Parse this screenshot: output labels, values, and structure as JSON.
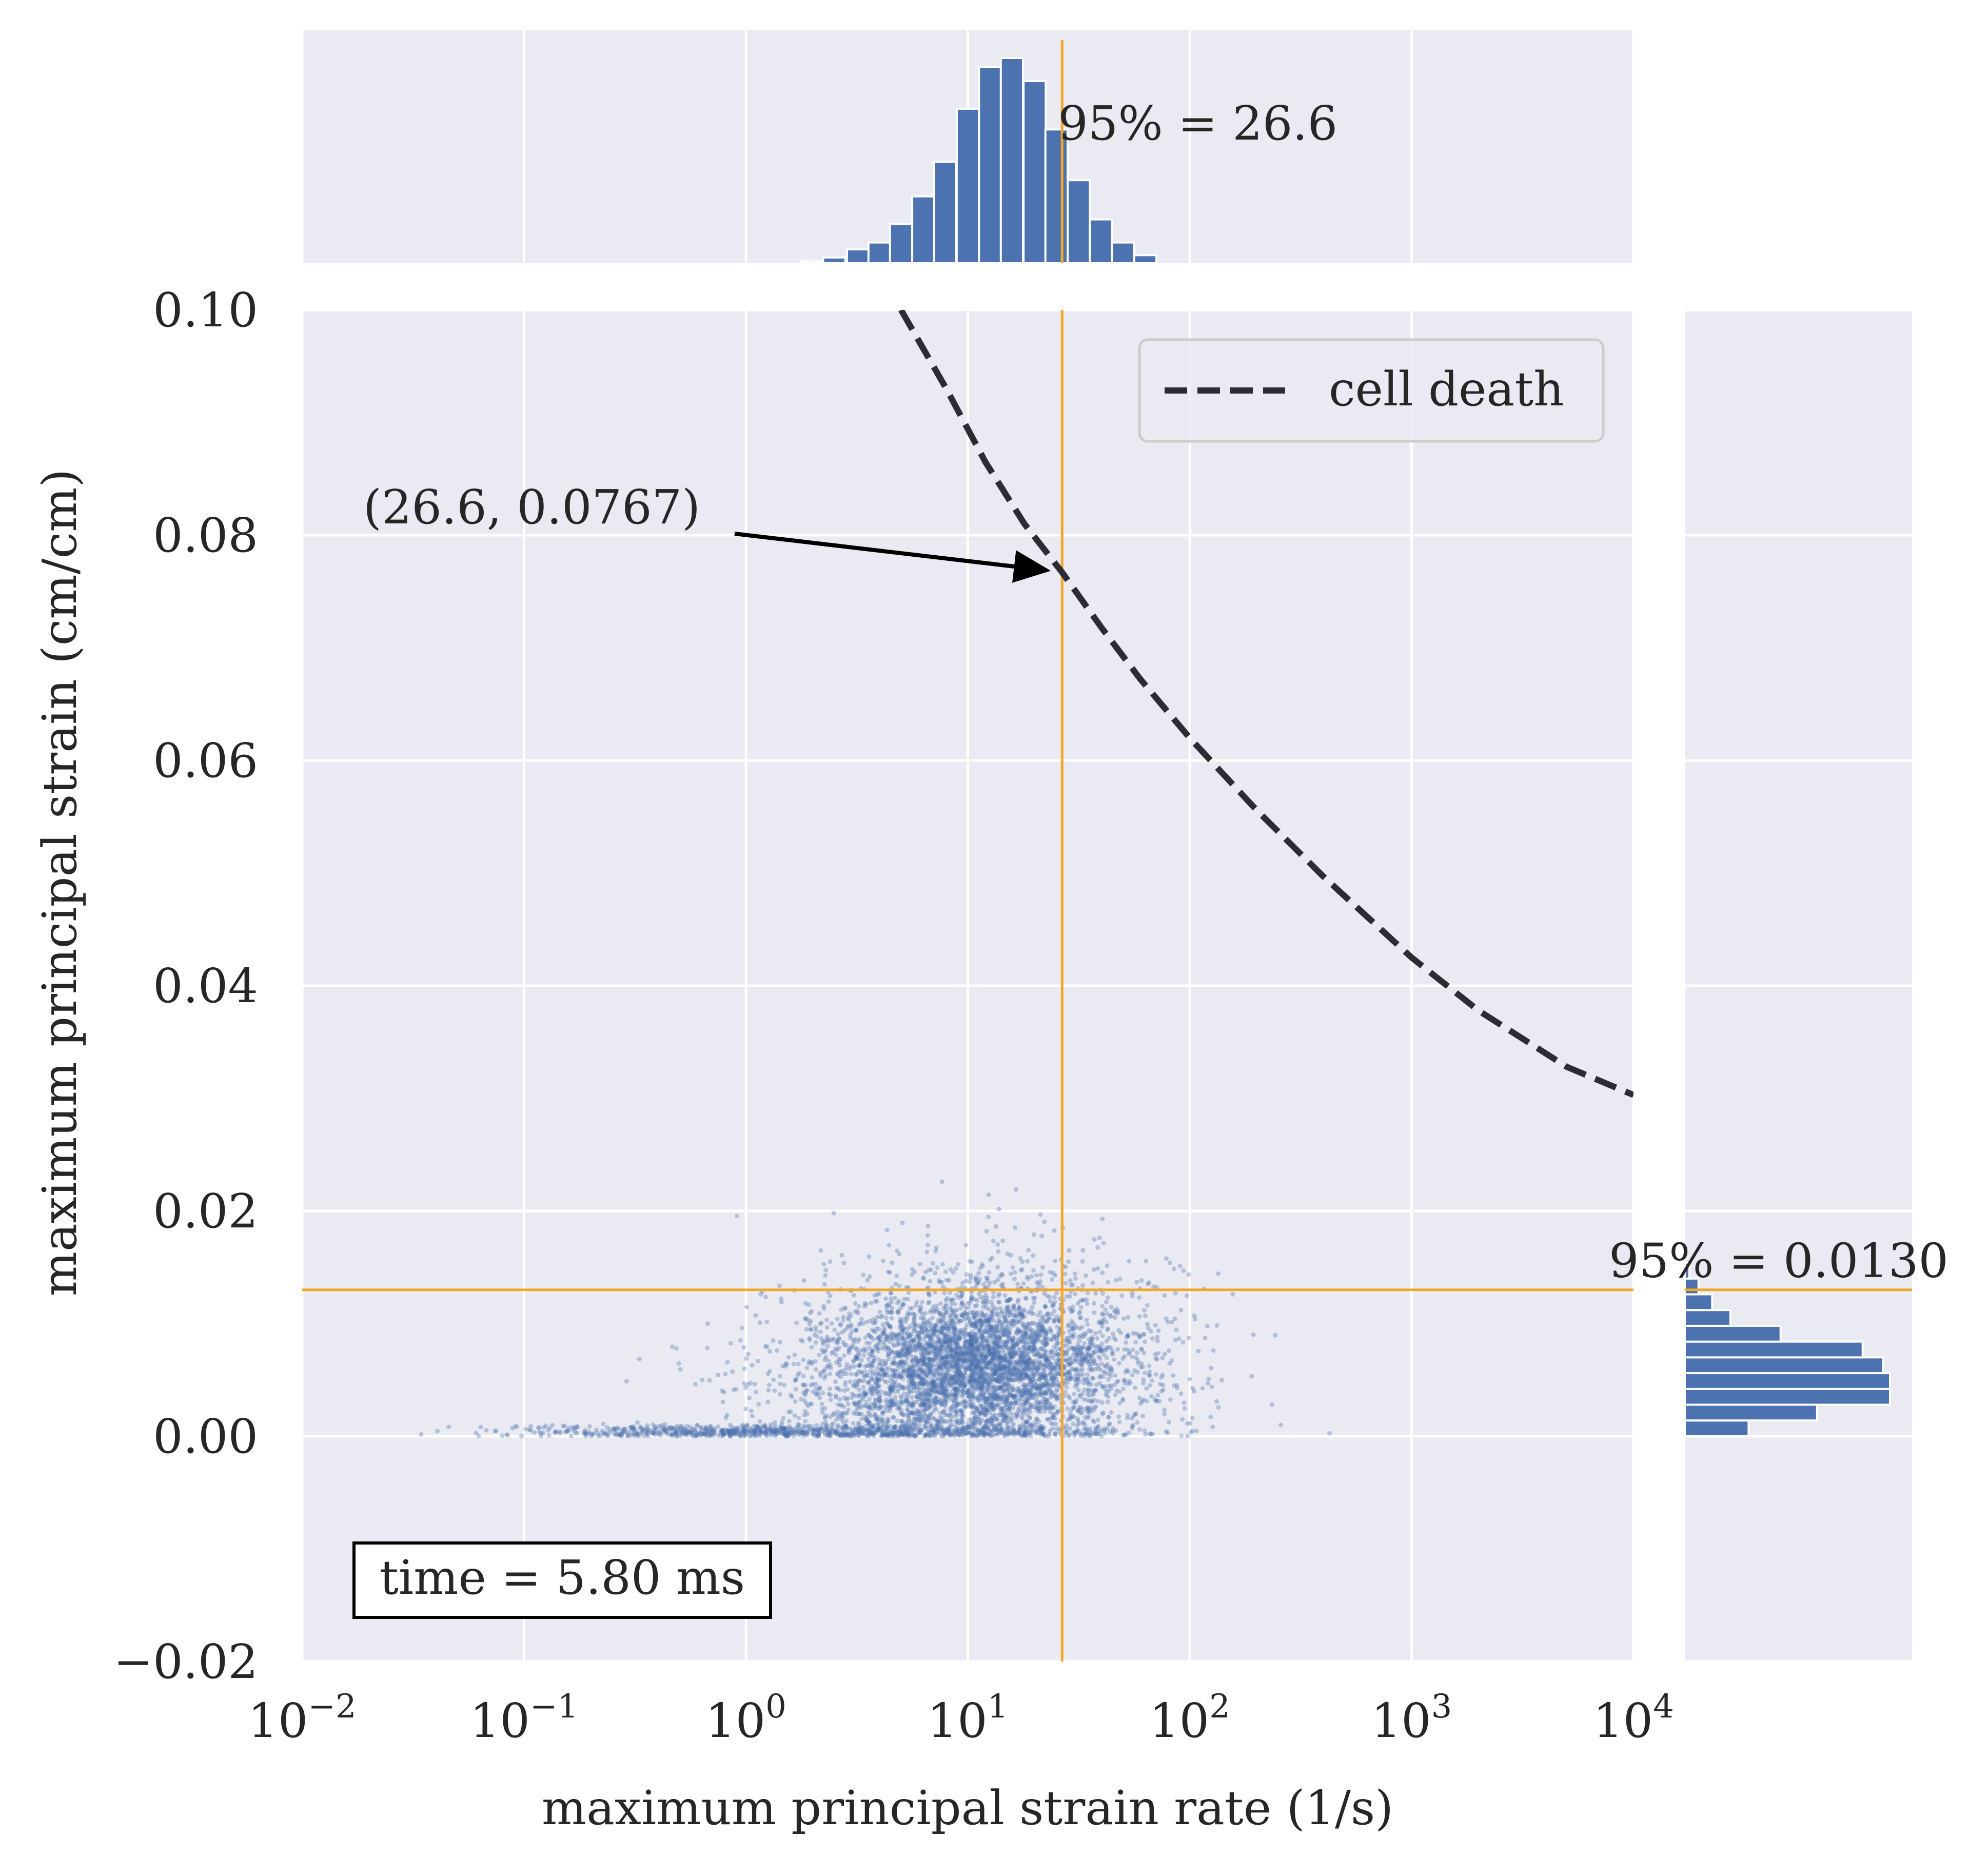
{
  "chart_data": {
    "type": "scatter",
    "xlabel": "maximum principal strain rate (1/s)",
    "ylabel": "maximum principal strain (cm/cm)",
    "xscale": "log",
    "xlim": [
      0.01,
      10000
    ],
    "ylim": [
      -0.02,
      0.1
    ],
    "grid": true,
    "x_ticks": [
      {
        "value": 0.01,
        "base": "10",
        "exp": "−2"
      },
      {
        "value": 0.1,
        "base": "10",
        "exp": "−1"
      },
      {
        "value": 1,
        "base": "10",
        "exp": "0"
      },
      {
        "value": 10,
        "base": "10",
        "exp": "1"
      },
      {
        "value": 100,
        "base": "10",
        "exp": "2"
      },
      {
        "value": 1000,
        "base": "10",
        "exp": "3"
      },
      {
        "value": 10000,
        "base": "10",
        "exp": "4"
      }
    ],
    "y_ticks": [
      {
        "value": -0.02,
        "label": "−0.02"
      },
      {
        "value": 0.0,
        "label": "0.00"
      },
      {
        "value": 0.02,
        "label": "0.02"
      },
      {
        "value": 0.04,
        "label": "0.04"
      },
      {
        "value": 0.06,
        "label": "0.06"
      },
      {
        "value": 0.08,
        "label": "0.08"
      },
      {
        "value": 0.1,
        "label": "0.10"
      }
    ],
    "legend": {
      "placement": "upper right",
      "entries": [
        "cell death"
      ]
    },
    "cell_death_curve": {
      "name": "cell death",
      "x": [
        5,
        8,
        12,
        18,
        26.6,
        40,
        60,
        100,
        200,
        400,
        1000,
        2000,
        5000,
        10000
      ],
      "y": [
        0.1,
        0.093,
        0.0865,
        0.081,
        0.0767,
        0.0718,
        0.0672,
        0.062,
        0.0556,
        0.0497,
        0.0425,
        0.0378,
        0.0328,
        0.0303
      ]
    },
    "scatter_clusters": [
      {
        "cx_log": 1.05,
        "cy": 0.0065,
        "sx_log": 0.28,
        "sy": 0.0028,
        "n": 2200
      },
      {
        "cx_log": 0.95,
        "cy": 0.0045,
        "sx_log": 0.45,
        "sy": 0.004,
        "n": 2000
      },
      {
        "cx_log": 1.15,
        "cy": 0.0085,
        "sx_log": 0.4,
        "sy": 0.0045,
        "n": 900
      },
      {
        "cx_log": 0.0,
        "cy": 0.0004,
        "sx_log": 0.55,
        "sy": 0.0003,
        "n": 700
      }
    ],
    "x_percentile": {
      "value": 26.6,
      "label": "95% = 26.6"
    },
    "y_percentile": {
      "value": 0.013,
      "label": "95% = 0.0130"
    },
    "annotation": {
      "text": "(26.6, 0.0767)",
      "x": 26.6,
      "y": 0.0767
    },
    "time_label": "time = 5.80 ms",
    "top_hist": {
      "x": [
        2.0,
        2.5,
        3.2,
        4.0,
        5.0,
        6.3,
        7.9,
        10.0,
        12.6,
        15.8,
        20.0,
        25.1,
        31.6,
        39.8,
        50.1,
        63.1
      ],
      "counts": [
        0.1,
        0.25,
        0.6,
        0.9,
        1.7,
        2.9,
        4.4,
        6.7,
        8.5,
        8.9,
        7.9,
        5.8,
        3.6,
        1.9,
        0.9,
        0.35
      ]
    },
    "right_hist": {
      "y": [
        0.0007,
        0.0021,
        0.0035,
        0.0049,
        0.0063,
        0.0077,
        0.0091,
        0.0105,
        0.0119,
        0.0133,
        0.0147
      ],
      "counts": [
        0.28,
        0.58,
        0.9,
        0.9,
        0.87,
        0.78,
        0.42,
        0.2,
        0.12,
        0.06,
        0.02
      ]
    },
    "colors": {
      "background": "#eaeaf2",
      "grid": "#ffffff",
      "points": "#4c72b0",
      "percentile_lines": "#f5a623",
      "curve": "#2b2d33",
      "text": "#262626"
    }
  }
}
